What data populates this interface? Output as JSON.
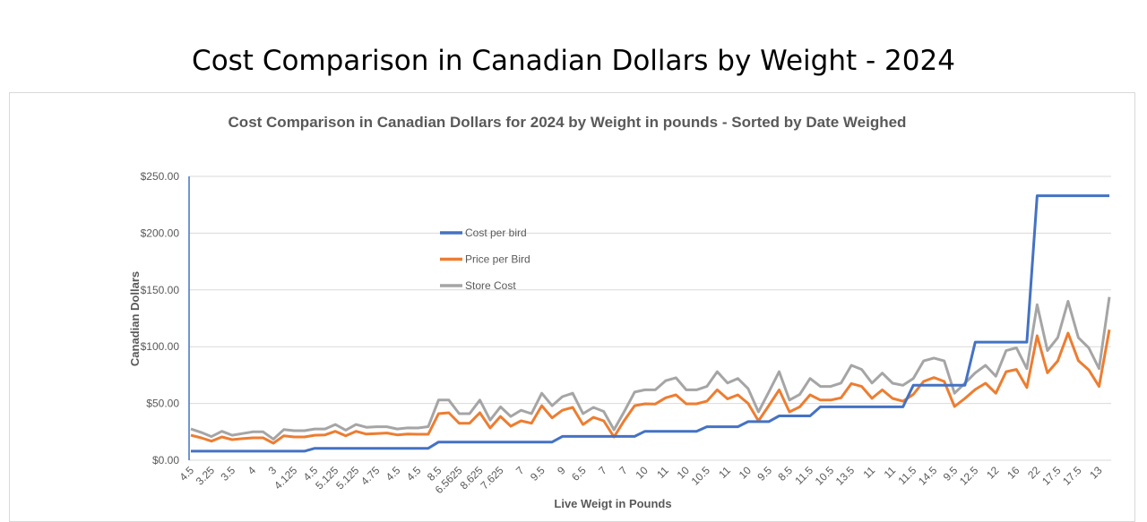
{
  "slide_title": "Cost Comparison in Canadian Dollars by Weight - 2024",
  "chart_data": {
    "type": "line",
    "title": "Cost Comparison in Canadian Dollars for 2024 by Weight in pounds - Sorted by Date Weighed",
    "xlabel": "Live Weigt in Pounds",
    "ylabel": "Canadian Dollars",
    "ylim": [
      0,
      250
    ],
    "y_ticks": [
      0,
      50,
      100,
      150,
      200,
      250
    ],
    "y_tick_labels": [
      "$0.00",
      "$50.00",
      "$100.00",
      "$150.00",
      "$200.00",
      "$250.00"
    ],
    "grid": "horizontal",
    "legend_position": "inside-top-center",
    "x_tick_labels": [
      "4.5",
      "3.25",
      "3.5",
      "4",
      "3",
      "4.125",
      "4.5",
      "5.125",
      "5.125",
      "4.75",
      "4.5",
      "4.5",
      "8.5",
      "6.5625",
      "8.625",
      "7.625",
      "7",
      "9.5",
      "9",
      "6.5",
      "7",
      "7",
      "10",
      "11",
      "10",
      "10.5",
      "11",
      "10",
      "9.5",
      "8.5",
      "11.5",
      "10.5",
      "13.5",
      "11",
      "11",
      "11.5",
      "14.5",
      "9.5",
      "12.5",
      "12",
      "16",
      "22",
      "17.5",
      "17.5",
      "13"
    ],
    "x_tick_every": 2,
    "series": [
      {
        "name": "Cost per bird",
        "color": "#4472C4",
        "values": [
          8,
          8,
          8,
          8,
          8,
          8,
          8,
          8,
          8,
          8,
          8,
          8,
          10.5,
          10.5,
          10.5,
          10.5,
          10.5,
          10.5,
          10.5,
          10.5,
          10.5,
          10.5,
          10.5,
          10.5,
          16,
          16,
          16,
          16,
          16,
          16,
          16,
          16,
          16,
          16,
          16,
          16,
          21,
          21,
          21,
          21,
          21,
          21,
          21,
          21,
          25.5,
          25.5,
          25.5,
          25.5,
          25.5,
          25.5,
          29.5,
          29.5,
          29.5,
          29.5,
          34,
          34,
          34,
          39,
          39,
          39,
          39,
          47,
          47,
          47,
          47,
          47,
          47,
          47,
          47,
          47,
          66,
          66,
          66,
          66,
          66,
          66,
          104,
          104,
          104,
          104,
          104,
          104,
          233,
          233,
          233,
          233,
          233,
          233,
          233,
          233
        ]
      },
      {
        "name": "Price per Bird",
        "color": "#ED7D31",
        "values": [
          22,
          19.7,
          16.8,
          20.5,
          18.1,
          19,
          19.7,
          19.7,
          15,
          21.5,
          20.5,
          20.5,
          22,
          22.3,
          25.5,
          21.5,
          25.5,
          23,
          23.4,
          24,
          22.3,
          23,
          22.9,
          22.9,
          41,
          41.8,
          32.6,
          32.6,
          41.8,
          28.4,
          38.6,
          30,
          34.7,
          32.6,
          48,
          37.3,
          44,
          46.5,
          31.5,
          37.8,
          34.7,
          20.5,
          35,
          48,
          49.7,
          49.5,
          55,
          57.6,
          49.7,
          49.7,
          52,
          62,
          54,
          57.6,
          50,
          34.6,
          48,
          62,
          42.6,
          47,
          57.6,
          53,
          53,
          55,
          67.5,
          65,
          54.5,
          62,
          54.4,
          52,
          58,
          69.4,
          72.8,
          69.4,
          47.3,
          54.4,
          62.3,
          67.8,
          59,
          78,
          80,
          64,
          109.6,
          77,
          87.5,
          112,
          87.8,
          79.6,
          65,
          115
        ]
      },
      {
        "name": "Store Cost",
        "color": "#A5A5A5",
        "values": [
          27.5,
          24.5,
          20.8,
          25.5,
          22,
          23.5,
          25,
          25,
          18.5,
          27,
          26,
          26,
          27.5,
          27.5,
          31.5,
          26.5,
          31.5,
          29,
          29.5,
          29.5,
          27.5,
          28.5,
          28.4,
          29.6,
          53,
          53,
          41,
          41,
          53,
          35.3,
          47,
          38.6,
          44,
          41,
          59,
          48,
          56,
          59,
          41,
          46.5,
          43,
          26.8,
          43,
          60,
          62,
          62,
          70,
          72.6,
          62,
          62,
          65,
          78,
          68,
          72,
          63,
          42.6,
          60,
          78,
          53,
          58,
          72,
          65,
          65,
          68,
          83.6,
          80,
          68,
          76.7,
          67.8,
          66,
          72,
          87.5,
          90,
          87.5,
          59,
          67.8,
          77,
          83.6,
          74,
          96.5,
          99,
          80.7,
          137,
          96.5,
          108,
          140,
          108,
          99,
          80.7,
          143.8
        ]
      }
    ]
  }
}
